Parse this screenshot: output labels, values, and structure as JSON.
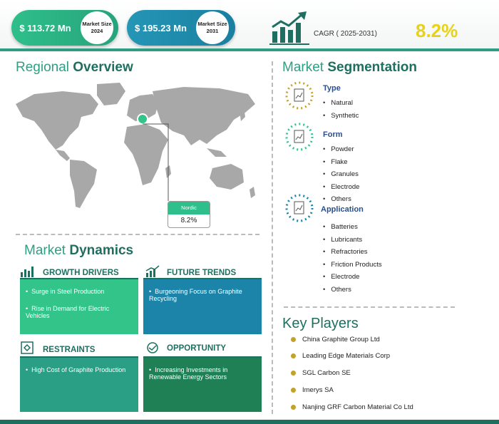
{
  "header": {
    "market_2024": {
      "value": "$ 113.72 Mn",
      "label": "Market Size 2024"
    },
    "market_2031": {
      "value": "$ 195.23 Mn",
      "label": "Market Size 2031"
    },
    "cagr_label": "CAGR ( 2025-2031)",
    "cagr_value": "8.2%"
  },
  "regional": {
    "title_light": "Regional ",
    "title_bold": "Overview",
    "region_name": "Nordic",
    "region_value": "8.2%"
  },
  "segmentation": {
    "title_light": "Market ",
    "title_bold": "Segmentation",
    "groups": [
      {
        "name": "Type",
        "items": [
          "Natural",
          "Synthetic"
        ]
      },
      {
        "name": "Form",
        "items": [
          "Powder",
          "Flake",
          "Granules",
          "Electrode",
          "Others"
        ]
      },
      {
        "name": "Application",
        "items": [
          "Batteries",
          "Lubricants",
          "Refractories",
          "Friction Products",
          "Electrode",
          "Others"
        ]
      }
    ]
  },
  "dynamics": {
    "title_light": "Market ",
    "title_bold": "Dynamics",
    "growth_drivers": {
      "label": "GROWTH DRIVERS",
      "items": [
        "Surge in Steel Production",
        "Rise in Demand for Electric Vehicles"
      ]
    },
    "future_trends": {
      "label": "FUTURE TRENDS",
      "items": [
        "Burgeoning Focus on Graphite Recycling"
      ]
    },
    "restraints": {
      "label": "RESTRAINTS",
      "items": [
        "High Cost of Graphite Production"
      ]
    },
    "opportunity": {
      "label": "OPPORTUNITY",
      "items": [
        "Increasing Investments in Renewable Energy Sectors"
      ]
    }
  },
  "key_players": {
    "title": "Key Players",
    "items": [
      "China Graphite Group Ltd",
      "Leading Edge Materials Corp",
      "SGL Carbon SE",
      "Imerys SA",
      "Nanjing GRF Carbon Material Co Ltd"
    ]
  },
  "colors": {
    "teal": "#2e9e83",
    "blue": "#1b84a8",
    "green": "#33c48a",
    "dark_teal": "#1e6f60",
    "gold": "#c2a12e",
    "yellow": "#e7d21a"
  }
}
